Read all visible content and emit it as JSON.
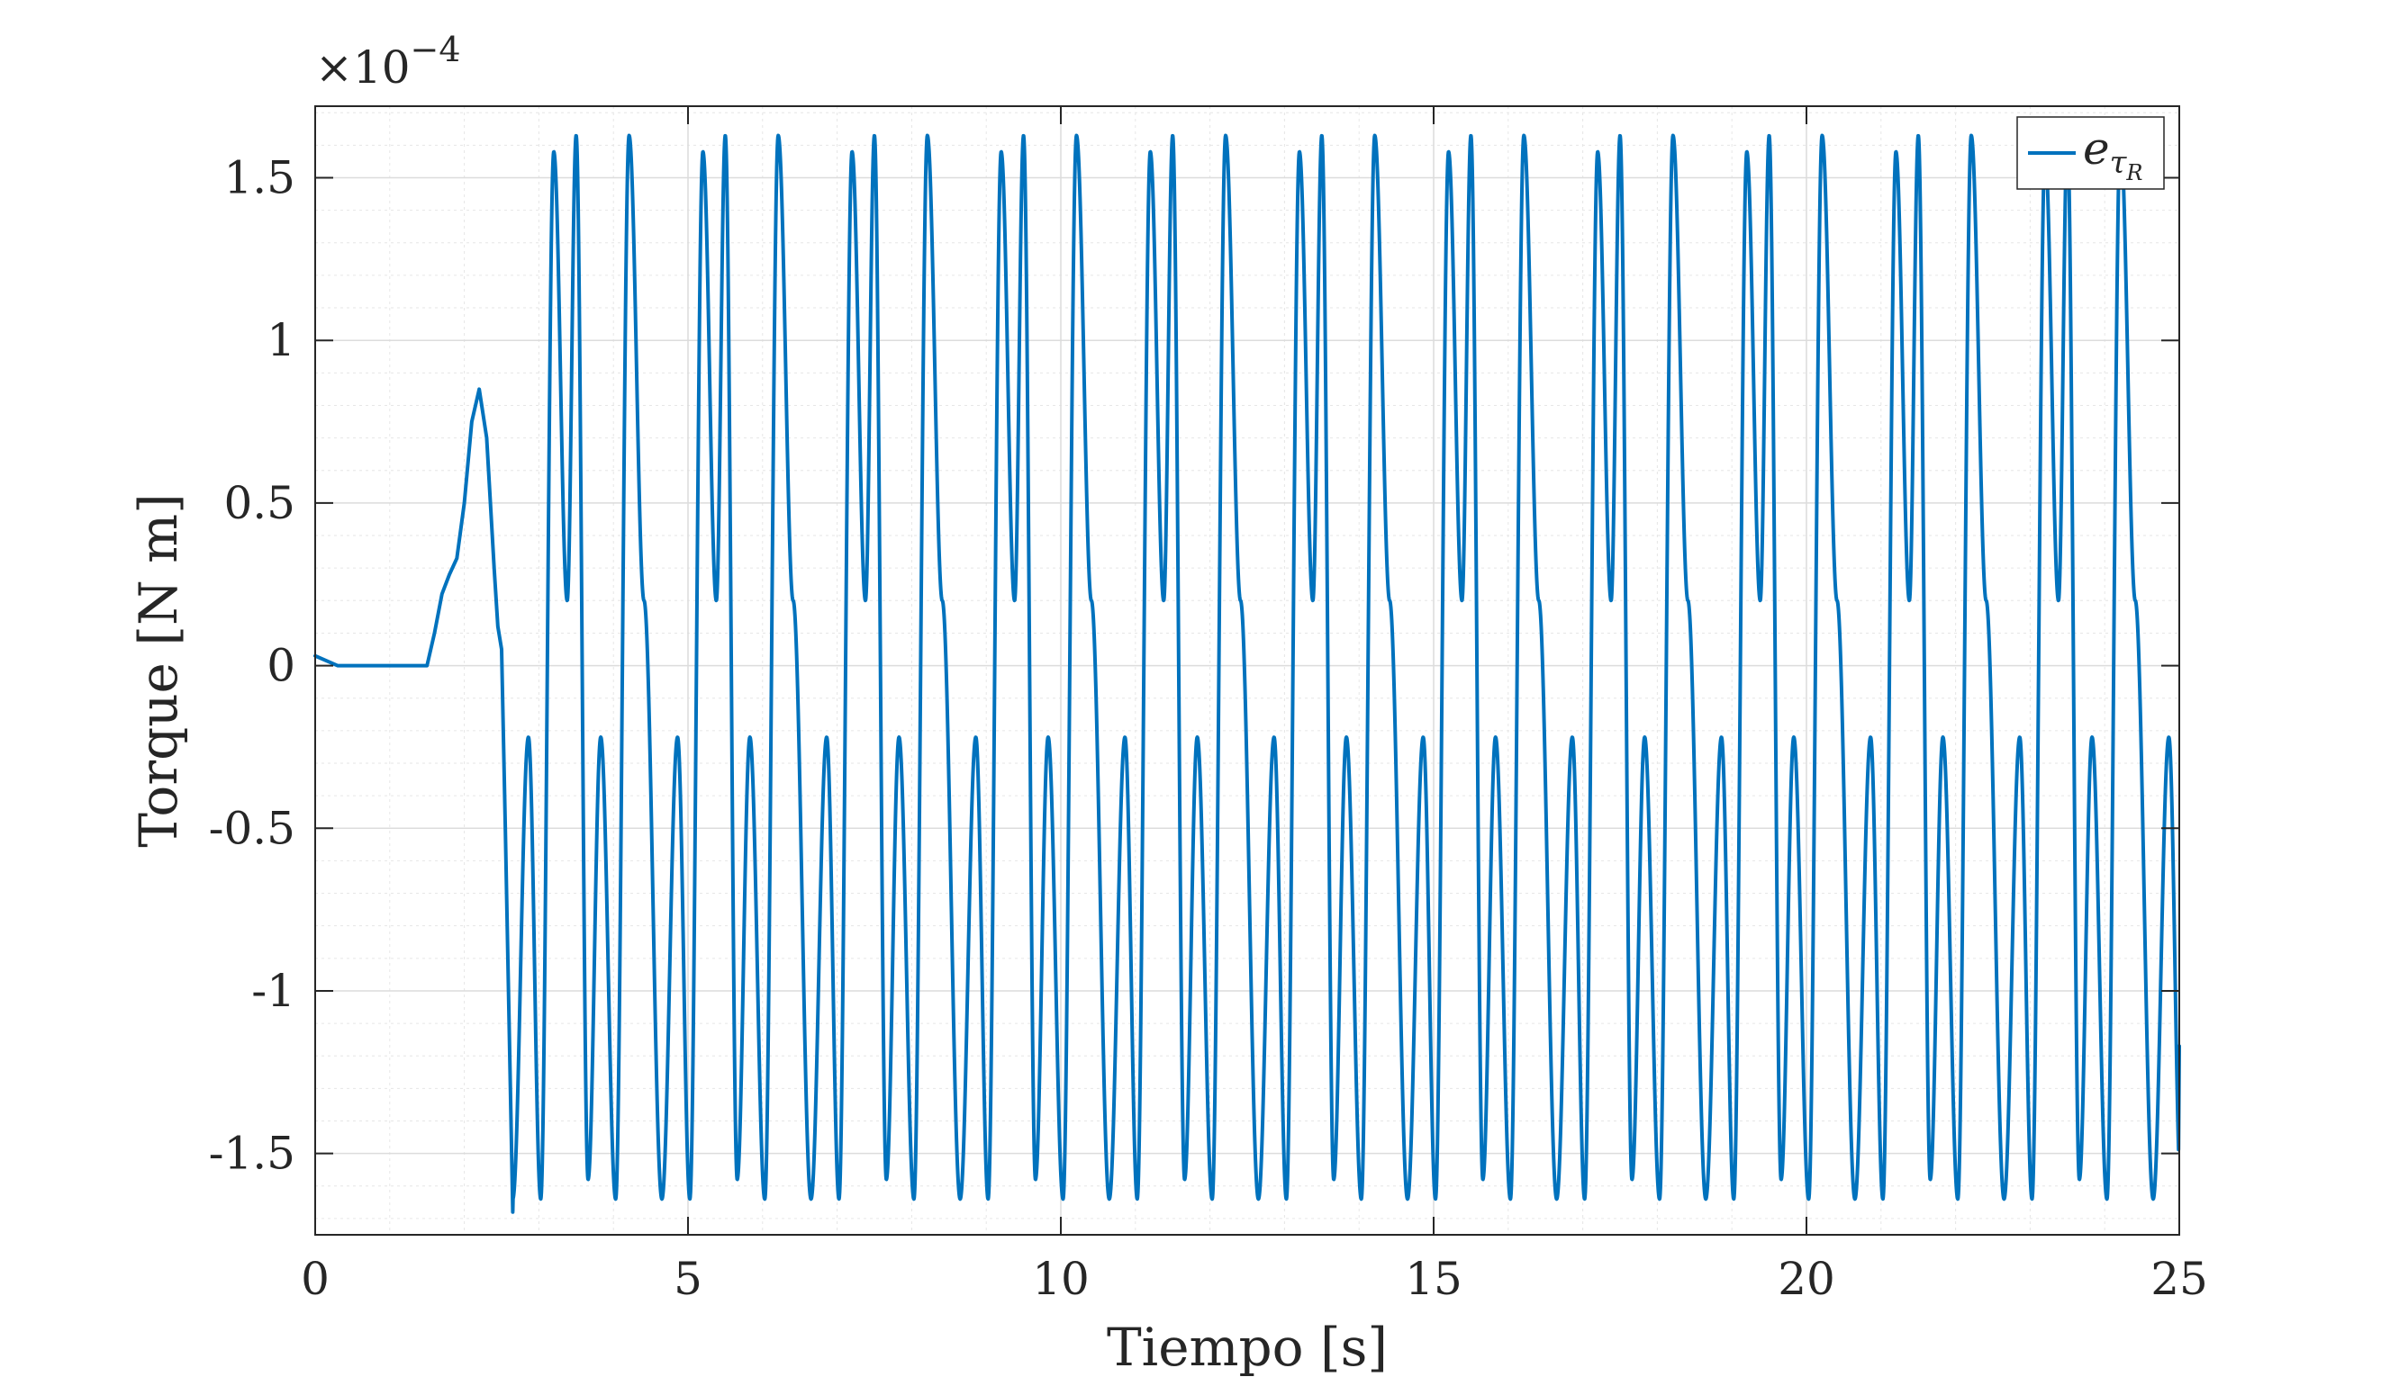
{
  "chart_data": {
    "type": "line",
    "title": "",
    "xlabel": "Tiempo [s]",
    "ylabel": "Torque [N m]",
    "y_exponent_label": "×10",
    "y_exponent_power": "−4",
    "xlim": [
      0,
      25
    ],
    "ylim": [
      -1.75,
      1.72
    ],
    "y_multiplier": 0.0001,
    "x_ticks": [
      0,
      5,
      10,
      15,
      20,
      25
    ],
    "x_tick_labels": [
      "0",
      "5",
      "10",
      "15",
      "20",
      "25"
    ],
    "y_ticks": [
      1.5,
      1,
      0.5,
      0,
      -0.5,
      -1,
      -1.5
    ],
    "y_tick_labels": [
      "1.5",
      "1",
      "0.5",
      "0",
      "-0.5",
      "-1",
      "-1.5"
    ],
    "grid": true,
    "minor_grid": true,
    "legend_position": "top-right",
    "series": [
      {
        "name": "e_{τ_R}",
        "legend_base": "e",
        "legend_sub": "τ",
        "legend_subsub": "R",
        "color": "#0072BD",
        "description_of_values": "y in units of 1e-4 N m",
        "x": [
          0,
          0.2,
          0.3,
          0.5,
          1.0,
          1.4,
          1.5,
          1.6,
          1.7,
          1.8,
          1.9,
          2.0,
          2.1,
          2.2,
          2.3,
          2.4,
          2.45,
          2.5,
          2.55,
          2.65
        ],
        "y": [
          0.03,
          0.01,
          0.0,
          0.0,
          0.0,
          0.0,
          0.0,
          0.1,
          0.22,
          0.28,
          0.33,
          0.5,
          0.75,
          0.85,
          0.7,
          0.3,
          0.12,
          0.05,
          -0.5,
          -1.68
        ]
      }
    ],
    "oscillation": {
      "start_time": 2.65,
      "period": 2.0,
      "frame_times": [
        0,
        0.21,
        0.375,
        0.55,
        0.73,
        0.85,
        1.01,
        1.18,
        1.38,
        1.56,
        1.76,
        2.0
      ],
      "frame_values": [
        -1.64,
        -0.22,
        -1.64,
        1.58,
        0.2,
        1.63,
        -1.58,
        -0.22,
        -1.64,
        1.63,
        0.2,
        -1.64
      ],
      "end_time": 25,
      "end_value": -1.17
    }
  }
}
